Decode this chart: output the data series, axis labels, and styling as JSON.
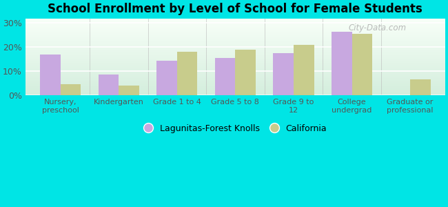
{
  "title": "School Enrollment by Level of School for Female Students",
  "categories": [
    "Nursery,\npreschool",
    "Kindergarten",
    "Grade 1 to 4",
    "Grade 5 to 8",
    "Grade 9 to\n12",
    "College\nundergrad",
    "Graduate or\nprofessional"
  ],
  "lagunitas_values": [
    17.0,
    8.5,
    14.5,
    15.5,
    17.5,
    26.5,
    0.0
  ],
  "california_values": [
    4.5,
    4.0,
    18.0,
    19.0,
    21.0,
    25.5,
    6.5
  ],
  "lagunitas_color": "#c8a8e0",
  "california_color": "#c8cc8c",
  "background_color": "#00e5e5",
  "ylim": [
    0,
    32
  ],
  "yticks": [
    0,
    10,
    20,
    30
  ],
  "ytick_labels": [
    "0%",
    "10%",
    "20%",
    "30%"
  ],
  "bar_width": 0.35,
  "legend_label_1": "Lagunitas-Forest Knolls",
  "legend_label_2": "California",
  "watermark": "City-Data.com",
  "plot_grad_top": "#f0fff0",
  "plot_grad_bottom": "#e0f5e8"
}
